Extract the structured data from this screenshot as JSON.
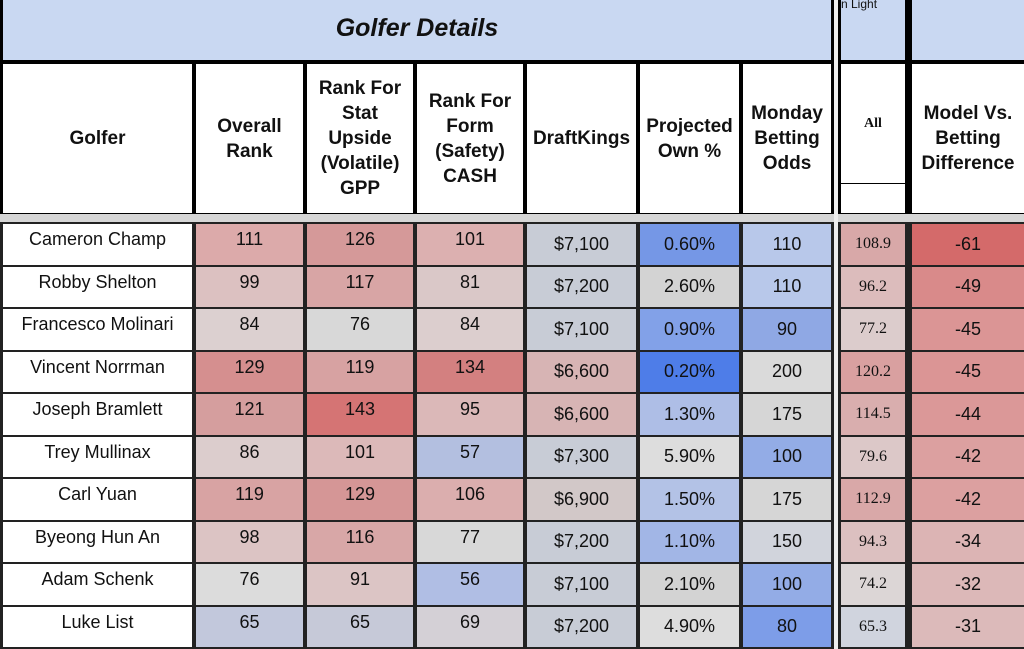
{
  "title": "Golfer Details",
  "partial_header": "n Light",
  "headers": {
    "golfer": "Golfer",
    "overall": "Overall Rank",
    "stat": "Rank For Stat Upside (Volatile) GPP",
    "form": "Rank For Form (Safety) CASH",
    "dk": "DraftKings",
    "own": "Projected Own %",
    "odds": "Monday Betting Odds",
    "all": "All",
    "diff": "Model Vs. Betting Difference"
  },
  "columns": [
    "golfer",
    "overall",
    "stat",
    "form",
    "dk",
    "own",
    "odds",
    "all",
    "diff"
  ],
  "rows": [
    {
      "golfer": "Cameron Champ",
      "overall": "111",
      "stat": "126",
      "form": "101",
      "dk": "$7,100",
      "own": "0.60%",
      "odds": "110",
      "all": "108.9",
      "diff": "-61"
    },
    {
      "golfer": "Robby Shelton",
      "overall": "99",
      "stat": "117",
      "form": "81",
      "dk": "$7,200",
      "own": "2.60%",
      "odds": "110",
      "all": "96.2",
      "diff": "-49"
    },
    {
      "golfer": "Francesco Molinari",
      "overall": "84",
      "stat": "76",
      "form": "84",
      "dk": "$7,100",
      "own": "0.90%",
      "odds": "90",
      "all": "77.2",
      "diff": "-45"
    },
    {
      "golfer": "Vincent Norrman",
      "overall": "129",
      "stat": "119",
      "form": "134",
      "dk": "$6,600",
      "own": "0.20%",
      "odds": "200",
      "all": "120.2",
      "diff": "-45"
    },
    {
      "golfer": "Joseph Bramlett",
      "overall": "121",
      "stat": "143",
      "form": "95",
      "dk": "$6,600",
      "own": "1.30%",
      "odds": "175",
      "all": "114.5",
      "diff": "-44"
    },
    {
      "golfer": "Trey Mullinax",
      "overall": "86",
      "stat": "101",
      "form": "57",
      "dk": "$7,300",
      "own": "5.90%",
      "odds": "100",
      "all": "79.6",
      "diff": "-42"
    },
    {
      "golfer": "Carl Yuan",
      "overall": "119",
      "stat": "129",
      "form": "106",
      "dk": "$6,900",
      "own": "1.50%",
      "odds": "175",
      "all": "112.9",
      "diff": "-42"
    },
    {
      "golfer": "Byeong Hun An",
      "overall": "98",
      "stat": "116",
      "form": "77",
      "dk": "$7,200",
      "own": "1.10%",
      "odds": "150",
      "all": "94.3",
      "diff": "-34"
    },
    {
      "golfer": "Adam Schenk",
      "overall": "76",
      "stat": "91",
      "form": "56",
      "dk": "$7,100",
      "own": "2.10%",
      "odds": "100",
      "all": "74.2",
      "diff": "-32"
    },
    {
      "golfer": "Luke List",
      "overall": "65",
      "stat": "65",
      "form": "69",
      "dk": "$7,200",
      "own": "4.90%",
      "odds": "80",
      "all": "65.3",
      "diff": "-31"
    }
  ],
  "cell_colors": [
    {
      "golfer": "#ffffff",
      "overall": "#dcaaaa",
      "stat": "#d59999",
      "form": "#dcb0b0",
      "dk": "#c8ccd6",
      "own": "#7597e6",
      "odds": "#b8c8ea",
      "all": "#d8a8a8",
      "diff": "#d46a6a"
    },
    {
      "golfer": "#ffffff",
      "overall": "#dcc1c1",
      "stat": "#d8a5a5",
      "form": "#dac8c8",
      "dk": "#c8ccd6",
      "own": "#d3d3d3",
      "odds": "#b8c8ea",
      "all": "#dcbcbc",
      "diff": "#d98a8a"
    },
    {
      "golfer": "#ffffff",
      "overall": "#dcd0d0",
      "stat": "#d8d8d8",
      "form": "#dccece",
      "dk": "#c8ccd6",
      "own": "#82a1e8",
      "odds": "#8fa8e4",
      "all": "#dccccc",
      "diff": "#db9595"
    },
    {
      "golfer": "#ffffff",
      "overall": "#d58f8f",
      "stat": "#d7a2a2",
      "form": "#d38080",
      "dk": "#d7b4b4",
      "own": "#4e7de8",
      "odds": "#dadada",
      "all": "#d9a0a0",
      "diff": "#db9595"
    },
    {
      "golfer": "#ffffff",
      "overall": "#d59e9e",
      "stat": "#d57474",
      "form": "#dbb8b8",
      "dk": "#d7b4b4",
      "own": "#aebee6",
      "odds": "#d6d6d6",
      "all": "#d9aeae",
      "diff": "#db9898"
    },
    {
      "golfer": "#ffffff",
      "overall": "#dccdcd",
      "stat": "#dcb9b9",
      "form": "#b3bfe0",
      "dk": "#c8ccd6",
      "own": "#dddddd",
      "odds": "#93ace6",
      "all": "#dcc8c8",
      "diff": "#dca0a0"
    },
    {
      "golfer": "#ffffff",
      "overall": "#d8a3a3",
      "stat": "#d59696",
      "form": "#dbaeae",
      "dk": "#d2c8c8",
      "own": "#b3c2e6",
      "odds": "#d6d6d6",
      "all": "#d9a8a8",
      "diff": "#dca0a0"
    },
    {
      "golfer": "#ffffff",
      "overall": "#dcc4c4",
      "stat": "#d8a7a7",
      "form": "#d8d8d8",
      "dk": "#c8ccd6",
      "own": "#a2b6e6",
      "odds": "#d1d4dc",
      "all": "#dcc0c0",
      "diff": "#dcb4b4"
    },
    {
      "golfer": "#ffffff",
      "overall": "#dcdcdc",
      "stat": "#dcc5c5",
      "form": "#b0bee4",
      "dk": "#c8ccd6",
      "own": "#d3d3d3",
      "odds": "#93ace6",
      "all": "#dcd6d6",
      "diff": "#dcb8b8"
    },
    {
      "golfer": "#ffffff",
      "overall": "#c2c8dc",
      "stat": "#c6c9d8",
      "form": "#d4d0d6",
      "dk": "#c8ccd6",
      "own": "#dddddd",
      "odds": "#7d9de8",
      "all": "#d0d4de",
      "diff": "#dcbaba"
    }
  ]
}
